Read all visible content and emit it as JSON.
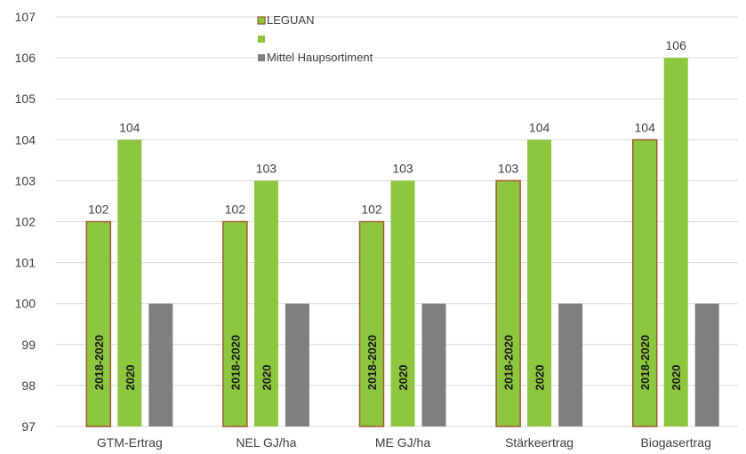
{
  "chart_data": {
    "type": "bar",
    "categories": [
      "GTM-Ertrag",
      "NEL GJ/ha",
      "ME GJ/ha",
      "Stärkeertrag",
      "Biogasertrag"
    ],
    "series": [
      {
        "name": "LEGUAN",
        "period": "2018-2020",
        "values": [
          102,
          102,
          102,
          103,
          104
        ],
        "color": "#8dc63f",
        "stroke": "#a05a2c",
        "data_labels": [
          "102",
          "102",
          "102",
          "103",
          "104"
        ]
      },
      {
        "name": "",
        "period": "2020",
        "values": [
          104,
          103,
          103,
          104,
          106
        ],
        "color": "#8dc63f",
        "data_labels": [
          "104",
          "103",
          "103",
          "104",
          "106"
        ]
      },
      {
        "name": "Mittel Haupsortiment",
        "period": "",
        "values": [
          100,
          100,
          100,
          100,
          100
        ],
        "color": "#7f7f7f",
        "data_labels": []
      }
    ],
    "ylim": [
      97,
      107
    ],
    "yticks": [
      "97",
      "98",
      "99",
      "100",
      "101",
      "102",
      "103",
      "104",
      "105",
      "106",
      "107"
    ],
    "gridlines": true,
    "legend": {
      "position": "top-center",
      "entries": [
        "LEGUAN",
        "",
        "Mittel Haupsortiment"
      ]
    },
    "title": "",
    "xlabel": "",
    "ylabel": ""
  }
}
